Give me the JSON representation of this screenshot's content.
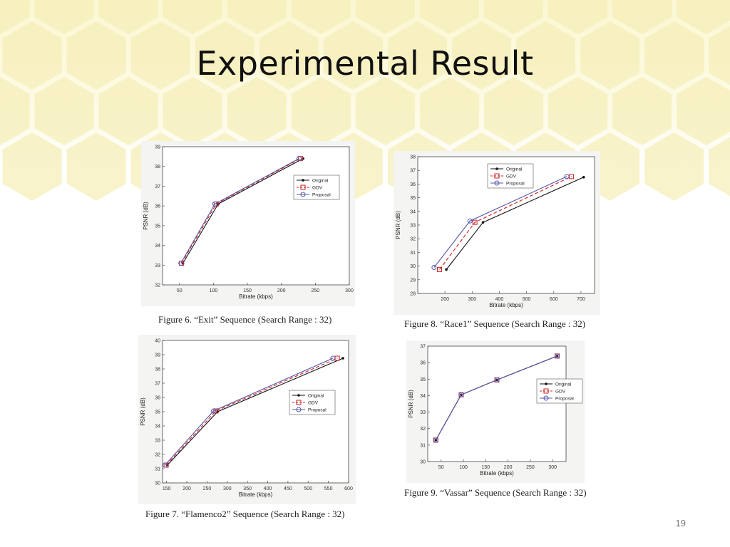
{
  "slide": {
    "title": "Experimental Result",
    "page_number": "19"
  },
  "captions": [
    "Figure 6.    “Exit” Sequence (Search Range : 32)",
    "Figure 8.    “Race1” Sequence (Search Range : 32)",
    "Figure 7.    “Flamenco2” Sequence (Search Range : 32)",
    "Figure 9.    “Vassar” Sequence (Search Range : 32)"
  ],
  "chart_data": [
    {
      "type": "line",
      "xlabel": "Bitrate (kbps)",
      "ylabel": "PSNR (dB)",
      "xlim": [
        25,
        300
      ],
      "ylim": [
        32,
        39
      ],
      "xticks": [
        50,
        100,
        150,
        200,
        250,
        300
      ],
      "yticks": [
        32,
        33,
        34,
        35,
        36,
        37,
        38,
        39
      ],
      "legend_position": "right",
      "series": [
        {
          "name": "Original",
          "color": "#111111",
          "marker": "dot",
          "dash": "",
          "x": [
            55,
            107,
            232
          ],
          "y": [
            33.1,
            36.1,
            38.4
          ]
        },
        {
          "name": "GDV",
          "color": "#cc2222",
          "marker": "square",
          "dash": "5,3",
          "x": [
            53,
            104,
            228
          ],
          "y": [
            33.1,
            36.1,
            38.4
          ]
        },
        {
          "name": "Proposal",
          "color": "#5555aa",
          "marker": "circle",
          "dash": "",
          "x": [
            52,
            102,
            226
          ],
          "y": [
            33.1,
            36.1,
            38.4
          ]
        }
      ]
    },
    {
      "type": "line",
      "xlabel": "Bitrate (kbps)",
      "ylabel": "PSNR (dB)",
      "xlim": [
        100,
        750
      ],
      "ylim": [
        28,
        38
      ],
      "xticks": [
        200,
        300,
        400,
        500,
        600,
        700
      ],
      "yticks": [
        28,
        29,
        30,
        31,
        32,
        33,
        34,
        35,
        36,
        37,
        38
      ],
      "legend_position": "top-left",
      "series": [
        {
          "name": "Original",
          "color": "#111111",
          "marker": "dot",
          "dash": "",
          "x": [
            205,
            340,
            710
          ],
          "y": [
            29.75,
            33.2,
            36.5
          ]
        },
        {
          "name": "GDV",
          "color": "#cc2222",
          "marker": "square",
          "dash": "5,3",
          "x": [
            180,
            310,
            665
          ],
          "y": [
            29.75,
            33.2,
            36.55
          ]
        },
        {
          "name": "Proposal",
          "color": "#5555aa",
          "marker": "circle",
          "dash": "",
          "x": [
            160,
            292,
            648
          ],
          "y": [
            29.9,
            33.3,
            36.55
          ]
        }
      ]
    },
    {
      "type": "line",
      "xlabel": "Bitrate (kbps)",
      "ylabel": "PSNR (dB)",
      "xlim": [
        140,
        600
      ],
      "ylim": [
        30,
        40
      ],
      "xticks": [
        150,
        200,
        250,
        300,
        350,
        400,
        450,
        500,
        550,
        600
      ],
      "yticks": [
        30,
        31,
        32,
        33,
        34,
        35,
        36,
        37,
        38,
        39,
        40
      ],
      "legend_position": "right",
      "series": [
        {
          "name": "Original",
          "color": "#111111",
          "marker": "dot",
          "dash": "",
          "x": [
            152,
            276,
            586
          ],
          "y": [
            31.25,
            35.0,
            38.75
          ]
        },
        {
          "name": "GDV",
          "color": "#cc2222",
          "marker": "square",
          "dash": "5,3",
          "x": [
            149,
            272,
            572
          ],
          "y": [
            31.25,
            35.05,
            38.75
          ]
        },
        {
          "name": "Proposal",
          "color": "#5555aa",
          "marker": "circle",
          "dash": "",
          "x": [
            146,
            266,
            561
          ],
          "y": [
            31.25,
            35.05,
            38.75
          ]
        }
      ]
    },
    {
      "type": "line",
      "xlabel": "Bitrate (kbps)",
      "ylabel": "PSNR (dB)",
      "xlim": [
        20,
        330
      ],
      "ylim": [
        30,
        37
      ],
      "xticks": [
        50,
        100,
        150,
        200,
        250,
        300
      ],
      "yticks": [
        30,
        31,
        32,
        33,
        34,
        35,
        36,
        37
      ],
      "legend_position": "right",
      "series": [
        {
          "name": "Original",
          "color": "#111111",
          "marker": "dot",
          "dash": "",
          "x": [
            38,
            95,
            175,
            310
          ],
          "y": [
            31.3,
            34.05,
            34.95,
            36.4
          ]
        },
        {
          "name": "GDV",
          "color": "#cc2222",
          "marker": "square",
          "dash": "5,3",
          "x": [
            38,
            95,
            175,
            310
          ],
          "y": [
            31.3,
            34.05,
            34.95,
            36.4
          ]
        },
        {
          "name": "Proposal",
          "color": "#5555aa",
          "marker": "circle",
          "dash": "",
          "x": [
            38,
            95,
            175,
            310
          ],
          "y": [
            31.3,
            34.05,
            34.95,
            36.4
          ]
        }
      ]
    }
  ]
}
